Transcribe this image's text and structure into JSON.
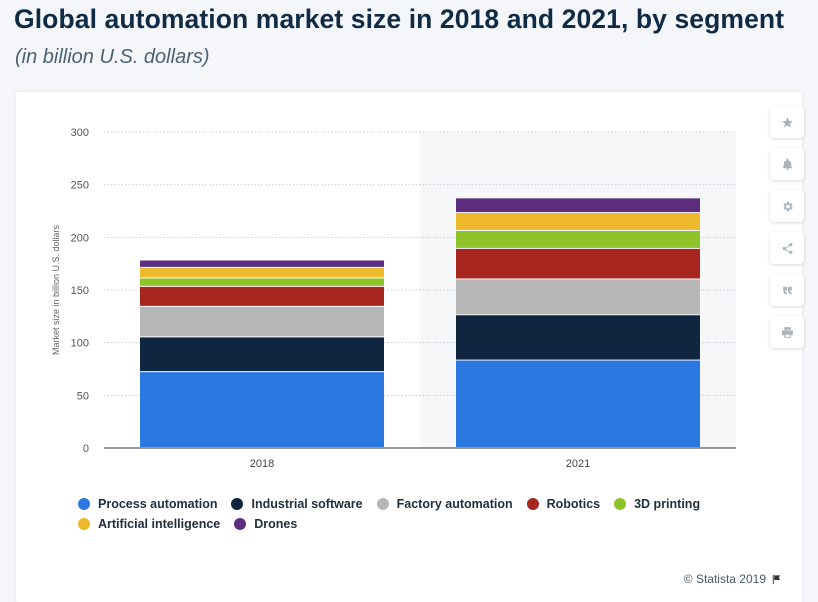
{
  "header": {
    "title": "Global automation market size in 2018 and 2021, by segment",
    "subtitle": "(in billion U.S. dollars)"
  },
  "sidebar": {
    "buttons": [
      {
        "icon": "star-icon"
      },
      {
        "icon": "bell-icon"
      },
      {
        "icon": "gear-icon"
      },
      {
        "icon": "share-icon"
      },
      {
        "icon": "quote-icon"
      },
      {
        "icon": "print-icon"
      }
    ]
  },
  "chart_data": {
    "type": "bar",
    "stacked": true,
    "categories": [
      "2018",
      "2021"
    ],
    "ylabel": "Market size in billion U.S. dollars",
    "xlabel": "",
    "ylim": [
      0,
      300
    ],
    "yticks": [
      0,
      50,
      100,
      150,
      200,
      250,
      300
    ],
    "grid": true,
    "legend_position": "bottom",
    "series": [
      {
        "name": "Process automation",
        "color": "#2b78e0",
        "values": [
          72,
          83
        ]
      },
      {
        "name": "Industrial software",
        "color": "#10253f",
        "values": [
          33,
          43
        ]
      },
      {
        "name": "Factory automation",
        "color": "#b7b7b7",
        "values": [
          29,
          34
        ]
      },
      {
        "name": "Robotics",
        "color": "#a7261f",
        "values": [
          19,
          29
        ]
      },
      {
        "name": "3D printing",
        "color": "#8ec32a",
        "values": [
          8,
          17
        ]
      },
      {
        "name": "Artificial intelligence",
        "color": "#efb92e",
        "values": [
          10,
          17
        ]
      },
      {
        "name": "Drones",
        "color": "#5c2d7c",
        "values": [
          7,
          14
        ]
      }
    ]
  },
  "footer": {
    "credit": "© Statista 2019"
  }
}
